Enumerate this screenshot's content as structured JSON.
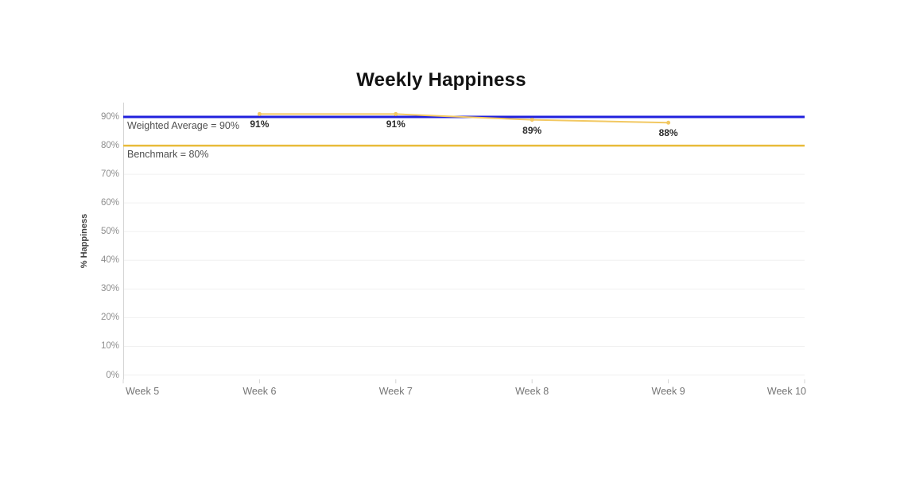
{
  "chart_data": {
    "type": "line",
    "title": "Weekly Happiness",
    "ylabel": "% Happiness",
    "xlabel": "",
    "x_categories": [
      "Week 5",
      "Week 6",
      "Week 7",
      "Week 8",
      "Week 9",
      "Week 10"
    ],
    "y_ticks": [
      "0%",
      "10%",
      "20%",
      "30%",
      "40%",
      "50%",
      "60%",
      "70%",
      "80%",
      "90%"
    ],
    "ylim": [
      0,
      95
    ],
    "grid": true,
    "legend": "none",
    "series": [
      {
        "name": "% Happiness",
        "color": "#f2c862",
        "points": [
          {
            "x": "Week 6",
            "y": 91,
            "label": "91%"
          },
          {
            "x": "Week 7",
            "y": 91,
            "label": "91%"
          },
          {
            "x": "Week 8",
            "y": 89,
            "label": "89%"
          },
          {
            "x": "Week 9",
            "y": 88,
            "label": "88%"
          }
        ]
      }
    ],
    "reference_lines": [
      {
        "label": "Weighted Average = 90%",
        "value": 90,
        "color": "#2121dd"
      },
      {
        "label": "Benchmark = 80%",
        "value": 80,
        "color": "#e8bb3a"
      }
    ]
  },
  "colors": {
    "gridline": "#f0f0f0",
    "axis_line": "#d4d4d4",
    "background": "#ffffff"
  }
}
